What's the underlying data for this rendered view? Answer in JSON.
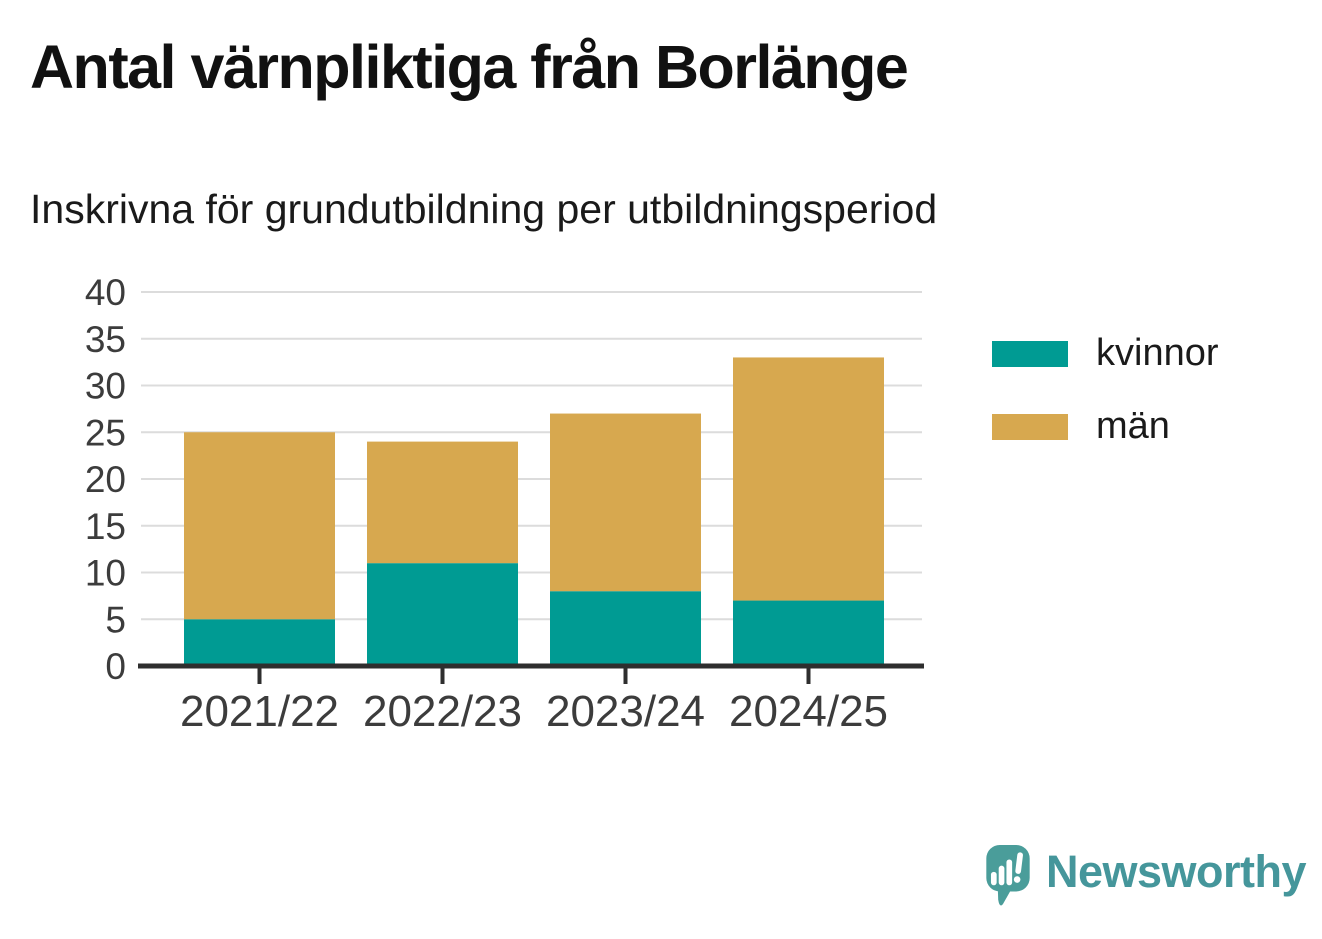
{
  "header": {
    "title": "Antal värnpliktiga från Borlänge",
    "subtitle": "Inskrivna för grundutbildning per utbildningsperiod"
  },
  "chart_data": {
    "type": "bar",
    "stacked": true,
    "title": "Antal värnpliktiga från Borlänge",
    "subtitle": "Inskrivna för grundutbildning per utbildningsperiod",
    "categories": [
      "2021/22",
      "2022/23",
      "2023/24",
      "2024/25"
    ],
    "series": [
      {
        "name": "kvinnor",
        "color": "#009b93",
        "values": [
          5,
          11,
          8,
          7
        ]
      },
      {
        "name": "män",
        "color": "#d7a84f",
        "values": [
          20,
          13,
          19,
          26
        ]
      }
    ],
    "totals": [
      25,
      24,
      27,
      33
    ],
    "xlabel": "",
    "ylabel": "",
    "ylim": [
      0,
      40
    ],
    "yticks": [
      0,
      5,
      10,
      15,
      20,
      25,
      30,
      35,
      40
    ],
    "grid": true,
    "legend_position": "right",
    "grid_color": "#dcdcdc",
    "axis_color": "#2e2e2e",
    "tick_label_color": "#3c3c3c"
  },
  "branding": {
    "logo_text": "Newsworthy",
    "logo_text_color": "#45969b",
    "logo_icon": "speech-bubble-bar-chart-icon",
    "logo_icon_color": "#4a9d9a"
  }
}
